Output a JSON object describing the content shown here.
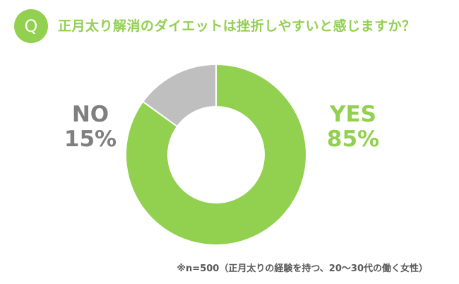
{
  "header": {
    "badge_text": "Q",
    "question": "正月太り解消のダイエットは挫折しやすいと感じますか？"
  },
  "colors": {
    "accent": "#92d050",
    "title_text": "#92d050",
    "yes_slice": "#92d050",
    "no_slice": "#bfbfbf",
    "no_label": "#7f7f7f",
    "slice_border": "#ffffff"
  },
  "chart_data": {
    "type": "pie",
    "variant": "donut",
    "categories": [
      "YES",
      "NO"
    ],
    "values": [
      85,
      15
    ],
    "value_labels": [
      "85%",
      "15%"
    ],
    "start_angle_deg": 0,
    "direction": "clockwise"
  },
  "footnote": "※n=500（正月太りの経験を持つ、20～30代の働く女性）"
}
